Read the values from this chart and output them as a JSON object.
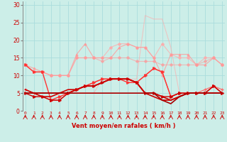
{
  "x": [
    0,
    1,
    2,
    3,
    4,
    5,
    6,
    7,
    8,
    9,
    10,
    11,
    12,
    13,
    14,
    15,
    16,
    17,
    18,
    19,
    20,
    21,
    22,
    23
  ],
  "background_color": "#cceee8",
  "grid_color": "#aadddd",
  "xlabel": "Vent moyen/en rafales ( km/h )",
  "xlabel_color": "#cc0000",
  "ylabel_color": "#cc0000",
  "yticks": [
    0,
    5,
    10,
    15,
    20,
    25,
    30
  ],
  "lines": [
    {
      "y": [
        5,
        5,
        5,
        5,
        5,
        5,
        5,
        5,
        5,
        9,
        9,
        9,
        9,
        9,
        27,
        26,
        26,
        18,
        5,
        5,
        5,
        5,
        5,
        5
      ],
      "color": "#ffaaaa",
      "linewidth": 0.8,
      "marker": null,
      "markersize": 0,
      "alpha": 0.6
    },
    {
      "y": [
        13,
        11,
        11,
        10,
        10,
        10,
        15,
        15,
        15,
        15,
        18,
        19,
        19,
        18,
        18,
        15,
        19,
        16,
        15,
        15,
        13,
        15,
        15,
        13
      ],
      "color": "#ffaaaa",
      "linewidth": 0.8,
      "marker": "D",
      "markersize": 2,
      "alpha": 0.75
    },
    {
      "y": [
        13,
        12,
        11,
        10,
        10,
        10,
        16,
        19,
        15,
        15,
        15,
        18,
        19,
        18,
        18,
        15,
        10,
        16,
        16,
        16,
        13,
        13,
        15,
        13
      ],
      "color": "#ff9999",
      "linewidth": 0.8,
      "marker": "^",
      "markersize": 2,
      "alpha": 0.8
    },
    {
      "y": [
        13,
        11,
        11,
        10,
        10,
        10,
        15,
        15,
        15,
        14,
        15,
        15,
        15,
        14,
        14,
        14,
        13,
        13,
        13,
        13,
        13,
        14,
        15,
        13
      ],
      "color": "#ff9999",
      "linewidth": 0.8,
      "marker": "D",
      "markersize": 2,
      "alpha": 0.6
    },
    {
      "y": [
        6,
        5,
        4,
        3,
        3,
        5,
        6,
        7,
        8,
        9,
        9,
        9,
        9,
        8,
        10,
        12,
        11,
        4,
        5,
        5,
        5,
        6,
        7,
        6
      ],
      "color": "#ff6666",
      "linewidth": 0.9,
      "marker": "+",
      "markersize": 3,
      "alpha": 0.9
    },
    {
      "y": [
        13,
        11,
        11,
        3,
        4,
        5,
        6,
        7,
        8,
        9,
        9,
        9,
        8,
        8,
        10,
        12,
        11,
        4,
        5,
        5,
        5,
        5,
        7,
        5
      ],
      "color": "#ff3333",
      "linewidth": 1.0,
      "marker": ">",
      "markersize": 2.5,
      "alpha": 1.0
    },
    {
      "y": [
        5,
        4,
        4,
        3,
        3,
        5,
        6,
        7,
        7,
        8,
        9,
        9,
        9,
        8,
        5,
        5,
        4,
        4,
        5,
        5,
        5,
        5,
        7,
        5
      ],
      "color": "#cc0000",
      "linewidth": 1.0,
      "marker": ">",
      "markersize": 2.5,
      "alpha": 1.0
    },
    {
      "y": [
        6,
        5,
        4,
        4,
        5,
        5,
        6,
        7,
        7,
        8,
        9,
        9,
        9,
        8,
        5,
        4,
        3,
        3,
        4,
        5,
        5,
        5,
        5,
        5
      ],
      "color": "#cc0000",
      "linewidth": 1.2,
      "marker": null,
      "markersize": 0,
      "alpha": 1.0
    },
    {
      "y": [
        5,
        5,
        5,
        5,
        5,
        6,
        6,
        7,
        7,
        8,
        9,
        9,
        9,
        8,
        5,
        5,
        4,
        3,
        4,
        5,
        5,
        5,
        5,
        5
      ],
      "color": "#cc0000",
      "linewidth": 1.2,
      "marker": null,
      "markersize": 0,
      "alpha": 1.0
    },
    {
      "y": [
        5,
        5,
        5,
        5,
        5,
        5,
        5,
        5,
        5,
        5,
        5,
        5,
        5,
        5,
        5,
        5,
        3,
        2,
        4,
        5,
        5,
        5,
        5,
        5
      ],
      "color": "#aa0000",
      "linewidth": 1.2,
      "marker": null,
      "markersize": 0,
      "alpha": 1.0
    }
  ],
  "ylim": [
    0,
    31
  ],
  "xlim": [
    -0.3,
    23.3
  ]
}
